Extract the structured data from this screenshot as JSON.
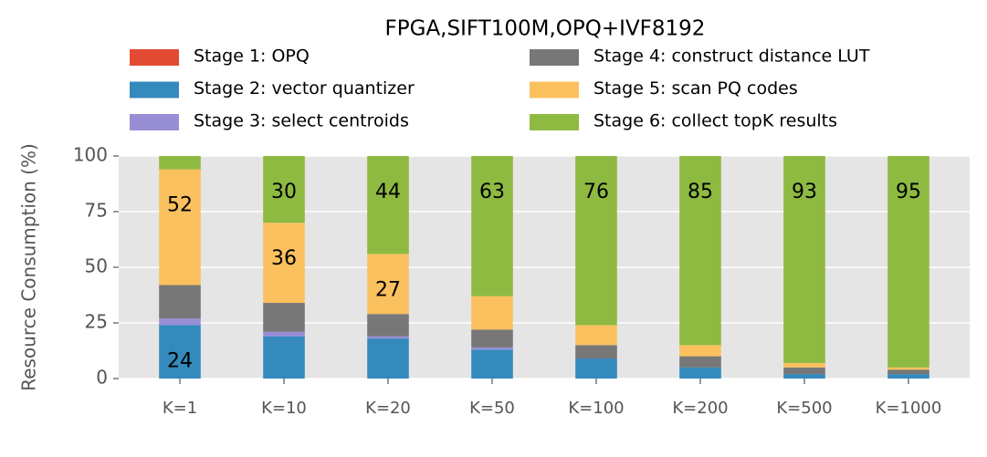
{
  "chart_data": {
    "type": "stacked_bar",
    "title": "FPGA,SIFT100M,OPQ+IVF8192",
    "ylabel": "Resource Consumption (%)",
    "categories": [
      "K=1",
      "K=10",
      "K=20",
      "K=50",
      "K=100",
      "K=200",
      "K=500",
      "K=1000"
    ],
    "ylim": [
      0,
      100
    ],
    "yticks": [
      0,
      25,
      50,
      75,
      100
    ],
    "grid": true,
    "series": [
      {
        "name": "Stage 1: OPQ",
        "color": "#E24A33",
        "values": [
          0,
          0,
          0,
          0,
          0,
          0,
          0,
          0
        ]
      },
      {
        "name": "Stage 2: vector quantizer",
        "color": "#348ABD",
        "values": [
          24,
          19,
          18,
          13,
          9,
          5,
          2,
          2
        ],
        "value_labels": [
          "24",
          null,
          null,
          null,
          null,
          null,
          null,
          null
        ]
      },
      {
        "name": "Stage 3: select centroids",
        "color": "#988ED5",
        "values": [
          3,
          2,
          1,
          1,
          0,
          0,
          0,
          0
        ]
      },
      {
        "name": "Stage 4: construct distance LUT",
        "color": "#777777",
        "values": [
          15,
          13,
          10,
          8,
          6,
          5,
          3,
          2
        ]
      },
      {
        "name": "Stage 5: scan PQ codes",
        "color": "#FBC15E",
        "values": [
          52,
          36,
          27,
          15,
          9,
          5,
          2,
          1
        ],
        "value_labels": [
          "52",
          "36",
          "27",
          null,
          null,
          null,
          null,
          null
        ]
      },
      {
        "name": "Stage 6: collect topK results",
        "color": "#8EBA42",
        "values": [
          6,
          30,
          44,
          63,
          76,
          85,
          93,
          95
        ],
        "value_labels": [
          null,
          "30",
          "44",
          "63",
          "76",
          "85",
          "93",
          "95"
        ]
      }
    ]
  }
}
